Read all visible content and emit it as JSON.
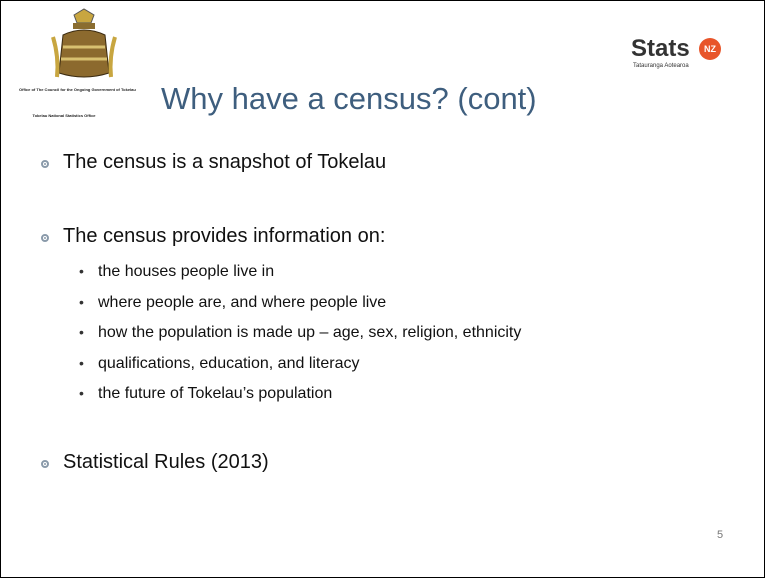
{
  "header": {
    "emblem_caption": [
      "Office of The Council for the Ongoing Government of Tokelau",
      "Tokelau National Statistics Office"
    ],
    "logo": {
      "word": "Stats",
      "badge": "NZ",
      "tagline": "Tatauranga Aotearoa"
    },
    "title": "Why have a census? (cont)"
  },
  "bullets": [
    {
      "text": "The census is a snapshot of Tokelau",
      "items": []
    },
    {
      "text": "The census provides information on:",
      "items": [
        "the houses people live in",
        "where people are, and where people live",
        "how the population is made up – age, sex, religion, ethnicity",
        "qualifications, education, and literacy",
        "the future of Tokelau’s population"
      ]
    },
    {
      "text": "Statistical Rules (2013)",
      "items": []
    }
  ],
  "page_number": "5"
}
